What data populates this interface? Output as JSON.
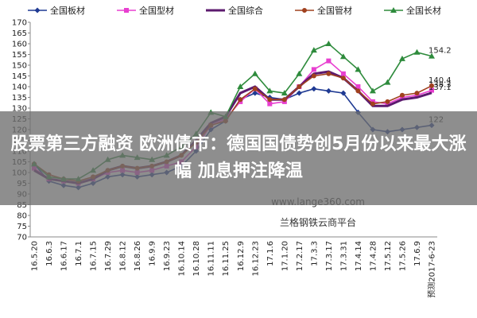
{
  "chart_data": {
    "type": "line",
    "categories": [
      "16.5.20",
      "16.6.3",
      "16.6.17",
      "16.7.1",
      "16.7.15",
      "16.7.29",
      "16.8.12",
      "16.8.26",
      "16.9.9",
      "16.9.23",
      "16.10.14",
      "16.10.28",
      "16.11.11",
      "16.11.25",
      "16.12.9",
      "16.12.23",
      "17.1.6",
      "17.1.20",
      "17.2.17",
      "17.3.3",
      "17.3.17",
      "17.3.31",
      "17.4.14",
      "17.4.28",
      "17.5.12",
      "17.5.26",
      "17.6.9",
      "预测2017-6-23"
    ],
    "series": [
      {
        "name": "全国板材",
        "color": "#1f3a93",
        "marker": "diamond",
        "values": [
          104,
          96,
          94,
          93,
          95,
          98,
          99,
          98,
          99,
          100,
          103,
          110,
          120,
          124,
          134,
          137,
          135,
          134,
          137,
          139,
          138,
          137,
          128,
          120,
          119,
          120,
          121,
          122
        ]
      },
      {
        "name": "全国型材",
        "color": "#e83fd0",
        "marker": "square",
        "values": [
          102,
          97,
          96,
          95,
          97,
          100,
          101,
          100,
          101,
          103,
          105,
          112,
          122,
          125,
          133,
          139,
          132,
          133,
          140,
          148,
          152,
          146,
          140,
          133,
          132,
          135,
          136,
          138.3
        ]
      },
      {
        "name": "全国综合",
        "color": "#5c1a6e",
        "marker": "none",
        "values": [
          101,
          97,
          96,
          95,
          97,
          101,
          103,
          102,
          103,
          105,
          108,
          115,
          123,
          126,
          137,
          140,
          134,
          134,
          140,
          146,
          147,
          144,
          138,
          131,
          131,
          134,
          135,
          137.1
        ]
      },
      {
        "name": "全国管材",
        "color": "#a0401e",
        "marker": "circle",
        "values": [
          104,
          99,
          97,
          96,
          98,
          101,
          103,
          102,
          103,
          105,
          108,
          114,
          122,
          124,
          134,
          139,
          134,
          134,
          140,
          145,
          146,
          144,
          138,
          132,
          133,
          136,
          137,
          140.4
        ]
      },
      {
        "name": "全国长材",
        "color": "#2e8b3c",
        "marker": "triangle",
        "values": [
          104,
          98,
          97,
          97,
          101,
          106,
          108,
          107,
          106,
          108,
          112,
          118,
          128,
          126,
          140,
          146,
          138,
          137,
          146,
          157,
          160,
          154,
          148,
          138,
          142,
          153,
          156,
          154.2
        ]
      }
    ],
    "ylim": [
      70,
      170
    ],
    "yticks": [
      70,
      75,
      80,
      85,
      90,
      95,
      100,
      105,
      110,
      115,
      120,
      125,
      130,
      135,
      140,
      145,
      150,
      155,
      160,
      165,
      170
    ],
    "grid": false
  },
  "overlay": {
    "headline": "股票第三方融资 欧洲债市：德国国债势创5月份以来最大涨幅 加息押注降温",
    "watermarks": [
      "www.lange360.com",
      "兰格钢铁云商平台"
    ]
  }
}
